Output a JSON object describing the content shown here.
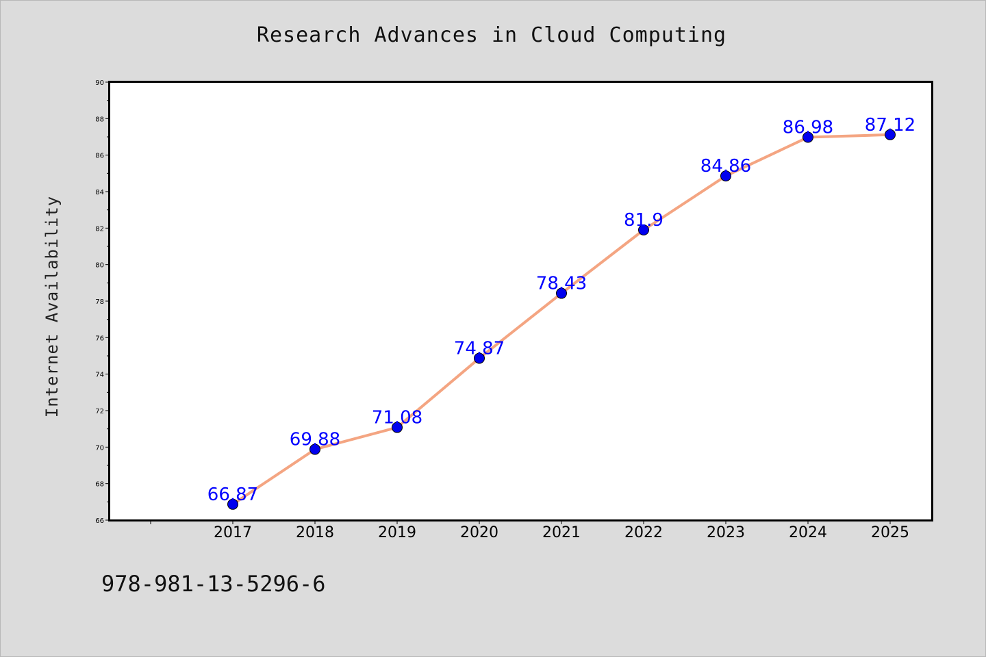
{
  "chart_data": {
    "type": "line",
    "title": "Research Advances in Cloud Computing",
    "xlabel": "",
    "ylabel": "Internet Availability",
    "categories": [
      "2017",
      "2018",
      "2019",
      "2020",
      "2021",
      "2022",
      "2023",
      "2024",
      "2025"
    ],
    "series": [
      {
        "values": [
          66.87,
          69.88,
          71.08,
          74.87,
          78.43,
          81.9,
          84.86,
          86.98,
          87.12
        ]
      }
    ],
    "data_labels": [
      "66.87",
      "69.88",
      "71.08",
      "74.87",
      "78.43",
      "81.9",
      "84.86",
      "86.98",
      "87.12"
    ],
    "ylim": [
      66,
      90
    ],
    "y_ticks": [
      "66",
      "68",
      "70",
      "72",
      "74",
      "76",
      "78",
      "80",
      "82",
      "84",
      "86",
      "88",
      "90"
    ],
    "grid": false,
    "line_color": "#f4a582",
    "marker_color": "#0000ee",
    "label_color": "#0000ff"
  },
  "footer": {
    "isbn": "978-981-13-5296-6"
  }
}
